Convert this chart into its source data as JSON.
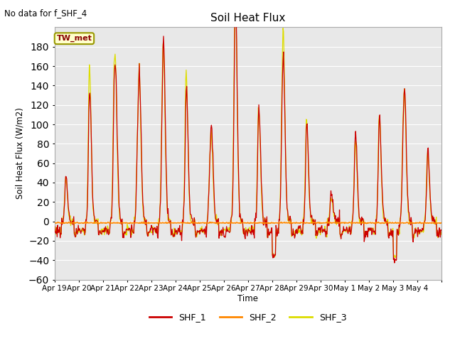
{
  "title": "Soil Heat Flux",
  "ylabel": "Soil Heat Flux (W/m2)",
  "xlabel": "Time",
  "annotation_text": "No data for f_SHF_4",
  "legend_label": "TW_met",
  "series_labels": [
    "SHF_1",
    "SHF_2",
    "SHF_3"
  ],
  "series_colors": [
    "#cc0000",
    "#ff8800",
    "#dddd00"
  ],
  "ylim": [
    -60,
    200
  ],
  "yticks": [
    -60,
    -40,
    -20,
    0,
    20,
    40,
    60,
    80,
    100,
    120,
    140,
    160,
    180
  ],
  "plot_bg_color": "#e8e8e8",
  "grid_color": "white",
  "tick_labels": [
    "Apr 19",
    "Apr 20",
    "Apr 21",
    "Apr 22",
    "Apr 23",
    "Apr 24",
    "Apr 25",
    "Apr 26",
    "Apr 27",
    "Apr 28",
    "Apr 29",
    "Apr 30",
    "May 1",
    "May 2",
    "May 3",
    "May 4"
  ],
  "n_days": 16,
  "figsize": [
    6.4,
    4.8
  ],
  "dpi": 100
}
